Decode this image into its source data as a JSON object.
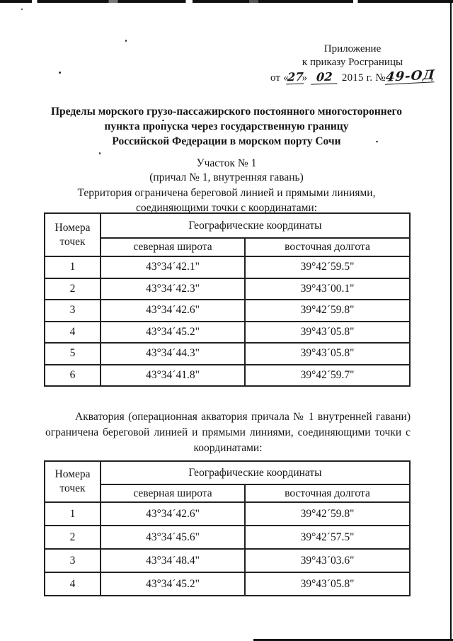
{
  "annex": {
    "line1": "Приложение",
    "line2": "к приказу Росграницы",
    "from_open": "от «",
    "day": "27",
    "close_quote": "»",
    "month": "02",
    "year_label": "2015 г. №",
    "number": "49-ОД"
  },
  "title": {
    "line1": "Пределы морского грузо-пассажирского постоянного многостороннего",
    "line2": "пункта пропуска через государственную границу",
    "line3": "Российской Федерации в морском порту Сочи"
  },
  "section1": {
    "heading1": "Участок № 1",
    "heading2": "(причал № 1, внутренняя гавань)",
    "paragraph": "Территория ограничена береговой линией и прямыми линиями, соединяющими точки с координатами:"
  },
  "table_headers": {
    "points": "Номера точек",
    "geo": "Географические координаты",
    "lat": "северная широта",
    "lon": "восточная долгота"
  },
  "table1": {
    "rows": [
      {
        "n": "1",
        "lat": "43°34´42.1\"",
        "lon": "39°42´59.5\""
      },
      {
        "n": "2",
        "lat": "43°34´42.3\"",
        "lon": "39°43´00.1\""
      },
      {
        "n": "3",
        "lat": "43°34´42.6\"",
        "lon": "39°42´59.8\""
      },
      {
        "n": "4",
        "lat": "43°34´45.2\"",
        "lon": "39°43´05.8\""
      },
      {
        "n": "5",
        "lat": "43°34´44.3\"",
        "lon": "39°43´05.8\""
      },
      {
        "n": "6",
        "lat": "43°34´41.8\"",
        "lon": "39°42´59.7\""
      }
    ]
  },
  "section2": {
    "paragraph": "Акватория (операционная акватория причала № 1 внутренней гавани) ограничена береговой линией и прямыми линиями, соединяющими точки с координатами:"
  },
  "table2": {
    "rows": [
      {
        "n": "1",
        "lat": "43°34´42.6\"",
        "lon": "39°42´59.8\""
      },
      {
        "n": "2",
        "lat": "43°34´45.6\"",
        "lon": "39°42´57.5\""
      },
      {
        "n": "3",
        "lat": "43°34´48.4\"",
        "lon": "39°43´03.6\""
      },
      {
        "n": "4",
        "lat": "43°34´45.2\"",
        "lon": "39°43´05.8\""
      }
    ]
  },
  "ink_color": "#161616",
  "paper_color": "#ffffff"
}
